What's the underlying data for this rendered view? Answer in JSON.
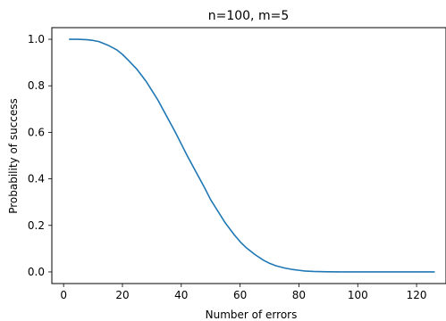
{
  "chart_data": {
    "type": "line",
    "title": "n=100, m=5",
    "xlabel": "Number of errors",
    "ylabel": "Probability of success",
    "xlim": [
      -4,
      130
    ],
    "ylim": [
      -0.05,
      1.05
    ],
    "xticks": [
      0,
      20,
      40,
      60,
      80,
      100,
      120
    ],
    "yticks": [
      0.0,
      0.2,
      0.4,
      0.6,
      0.8,
      1.0
    ],
    "xtick_labels": [
      "0",
      "20",
      "40",
      "60",
      "80",
      "100",
      "120"
    ],
    "ytick_labels": [
      "0.0",
      "0.2",
      "0.4",
      "0.6",
      "0.8",
      "1.0"
    ],
    "grid": false,
    "line_color": "#1f77b4",
    "series": [
      {
        "x": [
          2,
          5,
          8,
          10,
          12,
          15,
          18,
          20,
          22,
          25,
          28,
          30,
          32,
          35,
          38,
          40,
          42,
          45,
          48,
          50,
          52,
          55,
          58,
          60,
          62,
          65,
          68,
          70,
          72,
          75,
          78,
          80,
          82,
          85,
          88,
          90,
          95,
          100,
          105,
          110,
          115,
          120,
          126
        ],
        "y": [
          1.0,
          1.0,
          0.998,
          0.995,
          0.99,
          0.975,
          0.955,
          0.935,
          0.91,
          0.87,
          0.82,
          0.78,
          0.74,
          0.67,
          0.6,
          0.55,
          0.5,
          0.43,
          0.36,
          0.31,
          0.27,
          0.21,
          0.16,
          0.13,
          0.105,
          0.075,
          0.05,
          0.037,
          0.027,
          0.017,
          0.01,
          0.007,
          0.004,
          0.002,
          0.001,
          0.0005,
          0.0002,
          0.0,
          0.0,
          0.0,
          0.0,
          0.0,
          0.0
        ]
      }
    ]
  }
}
